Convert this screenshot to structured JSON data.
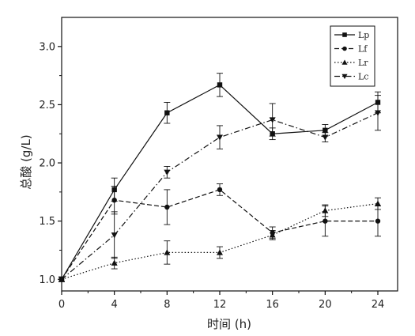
{
  "chart_data": {
    "type": "line",
    "title": "",
    "xlabel": "时间 (h)",
    "ylabel": "总酸 (g/L)",
    "x": [
      0,
      4,
      8,
      12,
      16,
      20,
      24
    ],
    "xlim": [
      0,
      25.5
    ],
    "ylim": [
      0.9,
      3.25
    ],
    "xticks": [
      0,
      4,
      8,
      12,
      16,
      20,
      24
    ],
    "yticks": [
      1.0,
      1.5,
      2.0,
      2.5,
      3.0
    ],
    "xtick_labels": [
      "0",
      "4",
      "8",
      "12",
      "16",
      "20",
      "24"
    ],
    "ytick_labels": [
      "1.0",
      "1.5",
      "2.0",
      "2.5",
      "3.0"
    ],
    "grid": false,
    "legend_position": "top-right",
    "series": [
      {
        "name": "Lp",
        "marker": "square",
        "line_style": "solid",
        "values": [
          1.0,
          1.77,
          2.43,
          2.67,
          2.25,
          2.28,
          2.52
        ],
        "errors": [
          0.02,
          0.1,
          0.09,
          0.1,
          0.05,
          0.05,
          0.09
        ]
      },
      {
        "name": "Lf",
        "marker": "circle",
        "line_style": "dashed",
        "values": [
          1.0,
          1.68,
          1.62,
          1.77,
          1.4,
          1.5,
          1.5
        ],
        "errors": [
          0.02,
          0.12,
          0.15,
          0.05,
          0.05,
          0.13,
          0.13
        ]
      },
      {
        "name": "Lr",
        "marker": "triangle-up",
        "line_style": "dotted",
        "values": [
          1.0,
          1.14,
          1.23,
          1.23,
          1.38,
          1.59,
          1.65
        ],
        "errors": [
          0.02,
          0.05,
          0.1,
          0.05,
          0.04,
          0.05,
          0.05
        ]
      },
      {
        "name": "Lc",
        "marker": "triangle-down",
        "line_style": "dash-dot",
        "values": [
          1.0,
          1.38,
          1.92,
          2.22,
          2.37,
          2.22,
          2.43
        ],
        "errors": [
          0.02,
          0.2,
          0.05,
          0.1,
          0.14,
          0.04,
          0.15
        ]
      }
    ],
    "colors": {
      "line": "#111111",
      "axis": "#111111",
      "background": "#ffffff"
    }
  }
}
